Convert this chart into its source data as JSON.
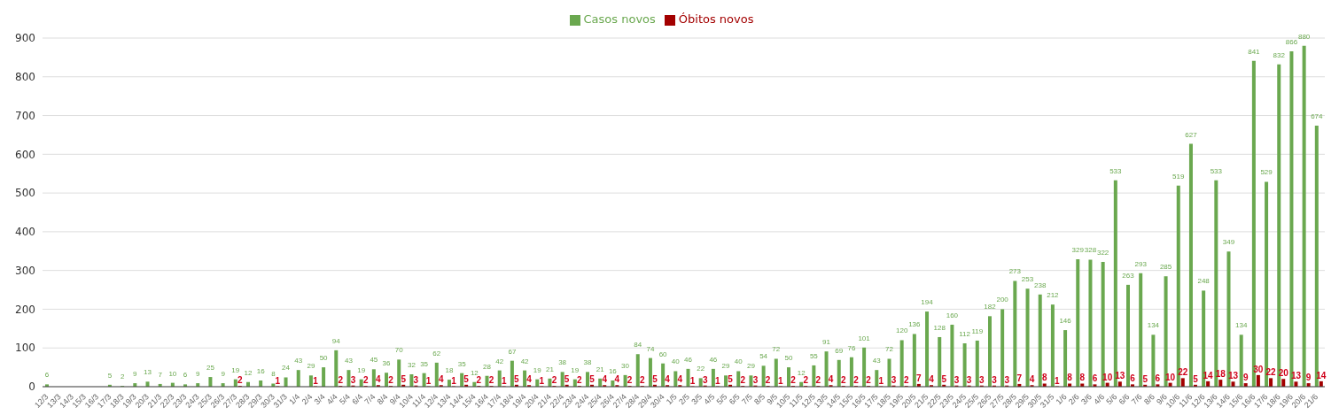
{
  "chart_data": {
    "type": "bar",
    "categories": [
      "12/3",
      "13/3",
      "14/3",
      "15/3",
      "16/3",
      "17/3",
      "18/3",
      "19/3",
      "20/3",
      "21/3",
      "22/3",
      "23/3",
      "24/3",
      "25/3",
      "26/3",
      "27/3",
      "28/3",
      "29/3",
      "30/3",
      "31/3",
      "1/4",
      "2/4",
      "3/4",
      "4/4",
      "5/4",
      "6/4",
      "7/4",
      "8/4",
      "9/4",
      "10/4",
      "11/4",
      "12/4",
      "13/4",
      "14/4",
      "15/4",
      "16/4",
      "17/4",
      "18/4",
      "19/4",
      "20/4",
      "21/4",
      "22/4",
      "23/4",
      "24/4",
      "25/4",
      "26/4",
      "27/4",
      "28/4",
      "29/4",
      "30/4",
      "1/5",
      "2/5",
      "3/5",
      "4/5",
      "5/5",
      "6/5",
      "7/5",
      "8/5",
      "9/5",
      "10/5",
      "11/5",
      "12/5",
      "13/5",
      "14/5",
      "15/5",
      "16/5",
      "17/5",
      "18/5",
      "19/5",
      "20/5",
      "21/5",
      "22/5",
      "23/5",
      "24/5",
      "25/5",
      "26/5",
      "27/5",
      "28/5",
      "29/5",
      "30/5",
      "31/5",
      "1/6",
      "2/6",
      "3/6",
      "4/6",
      "5/6",
      "6/6",
      "7/6",
      "8/6",
      "9/6",
      "10/6",
      "11/6",
      "12/6",
      "13/6",
      "14/6",
      "15/6",
      "16/6",
      "17/6",
      "18/6",
      "19/6",
      "20/6",
      "21/6"
    ],
    "series": [
      {
        "name": "Casos novos",
        "color": "#6aa84f",
        "values": [
          6,
          null,
          null,
          null,
          null,
          5,
          2,
          9,
          13,
          7,
          10,
          6,
          9,
          25,
          9,
          19,
          12,
          16,
          8,
          24,
          43,
          29,
          50,
          94,
          43,
          19,
          45,
          36,
          70,
          32,
          35,
          62,
          18,
          35,
          12,
          28,
          42,
          67,
          42,
          19,
          21,
          38,
          19,
          38,
          21,
          16,
          30,
          84,
          74,
          60,
          40,
          46,
          22,
          46,
          29,
          40,
          29,
          54,
          72,
          50,
          12,
          55,
          91,
          69,
          76,
          101,
          43,
          72,
          120,
          136,
          194,
          128,
          160,
          112,
          119,
          182,
          200,
          273,
          253,
          238,
          212,
          146,
          329,
          328,
          322,
          533,
          263,
          293,
          134,
          285,
          519,
          627,
          248,
          533,
          349,
          134,
          841,
          529,
          832,
          866,
          880,
          674
        ]
      },
      {
        "name": "Óbitos novos",
        "color": "#a30000",
        "values": [
          null,
          null,
          null,
          null,
          null,
          null,
          null,
          null,
          null,
          null,
          null,
          null,
          null,
          null,
          null,
          2,
          null,
          null,
          1,
          null,
          null,
          1,
          null,
          2,
          3,
          2,
          4,
          2,
          5,
          3,
          1,
          4,
          1,
          5,
          2,
          2,
          1,
          5,
          4,
          1,
          2,
          5,
          2,
          5,
          4,
          4,
          2,
          2,
          5,
          4,
          4,
          1,
          3,
          1,
          5,
          2,
          3,
          2,
          1,
          2,
          2,
          2,
          4,
          2,
          2,
          2,
          1,
          3,
          2,
          7,
          4,
          5,
          3,
          3,
          3,
          3,
          3,
          7,
          4,
          8,
          1,
          8,
          8,
          6,
          10,
          13,
          6,
          5,
          6,
          10,
          22,
          5,
          14,
          18,
          13,
          9,
          30,
          22,
          20,
          13,
          9,
          14
        ]
      }
    ],
    "ylim": [
      0,
      900
    ],
    "yticks": [
      0,
      100,
      200,
      300,
      400,
      500,
      600,
      700,
      800,
      900
    ],
    "grid": "y",
    "legend": "top",
    "data_labels": true
  }
}
